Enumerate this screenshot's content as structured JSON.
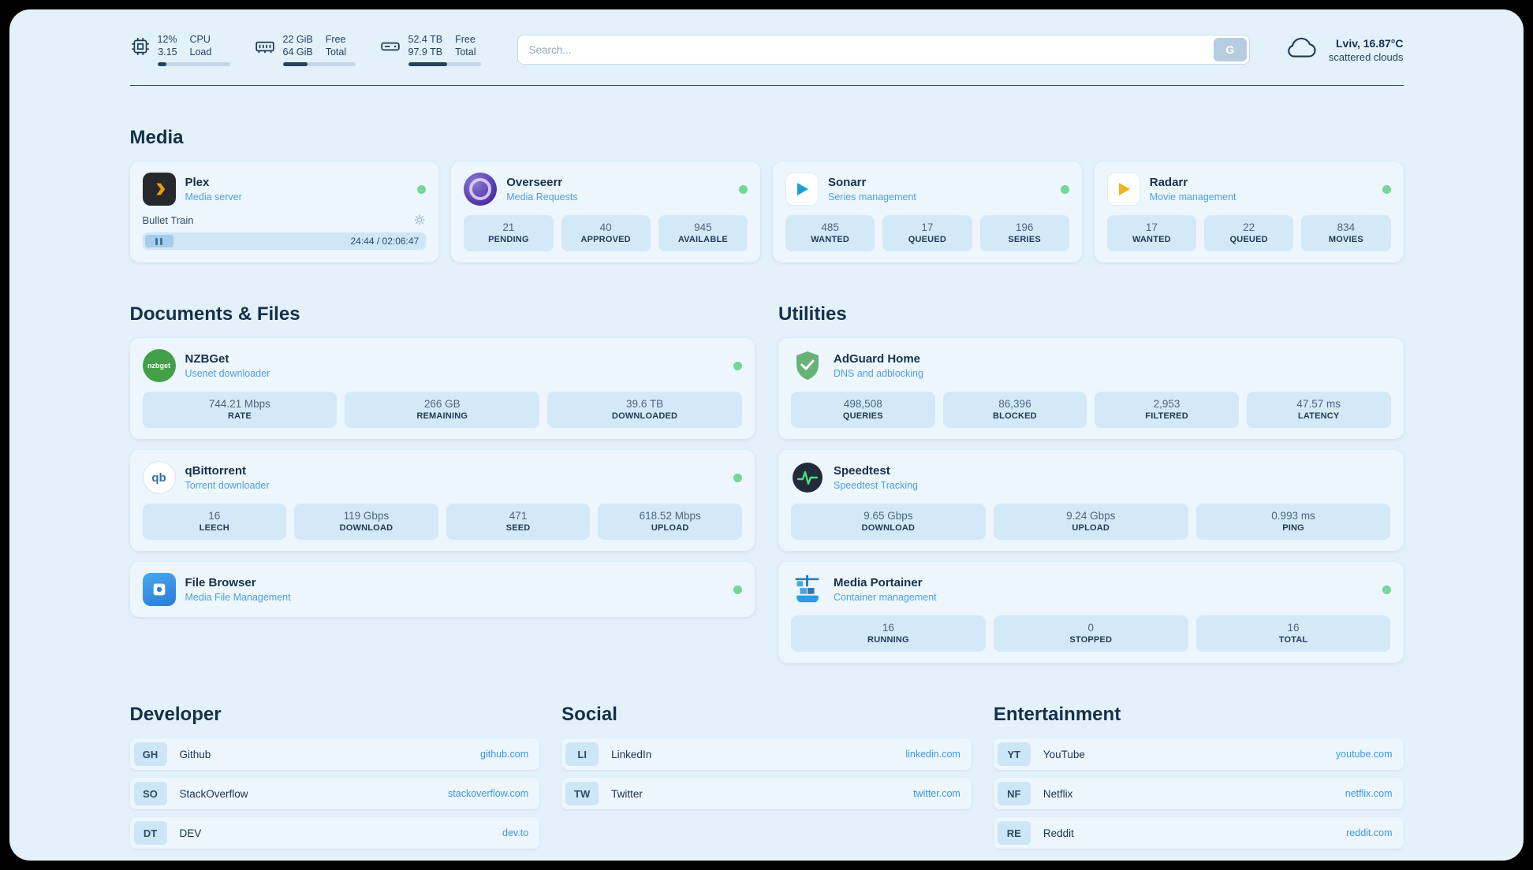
{
  "topbar": {
    "cpu": {
      "value_top": "12%",
      "value_bottom": "3.15",
      "label_top": "CPU",
      "label_bottom": "Load",
      "percent": 12
    },
    "ram": {
      "value_top": "22 GiB",
      "value_bottom": "64 GiB",
      "label_top": "Free",
      "label_bottom": "Total",
      "percent": 34
    },
    "disk": {
      "value_top": "52.4 TB",
      "value_bottom": "97.9 TB",
      "label_top": "Free",
      "label_bottom": "Total",
      "percent": 54
    },
    "search": {
      "placeholder": "Search...",
      "button_label": "G"
    },
    "weather": {
      "location": "Lviv, 16.87°C",
      "condition": "scattered clouds"
    }
  },
  "sections": {
    "media": "Media",
    "documents": "Documents & Files",
    "utilities": "Utilities",
    "developer": "Developer",
    "social": "Social",
    "entertainment": "Entertainment"
  },
  "media": {
    "plex": {
      "name": "Plex",
      "subtitle": "Media server",
      "now_playing": "Bullet Train",
      "time": "24:44 / 02:06:47"
    },
    "overseerr": {
      "name": "Overseerr",
      "subtitle": "Media Requests",
      "stats": [
        {
          "value": "21",
          "label": "PENDING"
        },
        {
          "value": "40",
          "label": "APPROVED"
        },
        {
          "value": "945",
          "label": "AVAILABLE"
        }
      ]
    },
    "sonarr": {
      "name": "Sonarr",
      "subtitle": "Series management",
      "stats": [
        {
          "value": "485",
          "label": "WANTED"
        },
        {
          "value": "17",
          "label": "QUEUED"
        },
        {
          "value": "196",
          "label": "SERIES"
        }
      ]
    },
    "radarr": {
      "name": "Radarr",
      "subtitle": "Movie management",
      "stats": [
        {
          "value": "17",
          "label": "WANTED"
        },
        {
          "value": "22",
          "label": "QUEUED"
        },
        {
          "value": "834",
          "label": "MOVIES"
        }
      ]
    }
  },
  "documents": {
    "nzbget": {
      "name": "NZBGet",
      "subtitle": "Usenet downloader",
      "icon_text": "nzbget",
      "stats": [
        {
          "value": "744.21 Mbps",
          "label": "RATE"
        },
        {
          "value": "266 GB",
          "label": "REMAINING"
        },
        {
          "value": "39.6 TB",
          "label": "DOWNLOADED"
        }
      ]
    },
    "qbittorrent": {
      "name": "qBittorrent",
      "subtitle": "Torrent downloader",
      "icon_text": "qb",
      "stats": [
        {
          "value": "16",
          "label": "LEECH"
        },
        {
          "value": "119 Gbps",
          "label": "DOWNLOAD"
        },
        {
          "value": "471",
          "label": "SEED"
        },
        {
          "value": "618.52 Mbps",
          "label": "UPLOAD"
        }
      ]
    },
    "filebrowser": {
      "name": "File Browser",
      "subtitle": "Media File Management"
    }
  },
  "utilities": {
    "adguard": {
      "name": "AdGuard Home",
      "subtitle": "DNS and adblocking",
      "stats": [
        {
          "value": "498,508",
          "label": "QUERIES"
        },
        {
          "value": "86,396",
          "label": "BLOCKED"
        },
        {
          "value": "2,953",
          "label": "FILTERED"
        },
        {
          "value": "47.57 ms",
          "label": "LATENCY"
        }
      ]
    },
    "speedtest": {
      "name": "Speedtest",
      "subtitle": "Speedtest Tracking",
      "stats": [
        {
          "value": "9.65 Gbps",
          "label": "DOWNLOAD"
        },
        {
          "value": "9.24 Gbps",
          "label": "UPLOAD"
        },
        {
          "value": "0.993 ms",
          "label": "PING"
        }
      ]
    },
    "portainer": {
      "name": "Media Portainer",
      "subtitle": "Container management",
      "stats": [
        {
          "value": "16",
          "label": "RUNNING"
        },
        {
          "value": "0",
          "label": "STOPPED"
        },
        {
          "value": "16",
          "label": "TOTAL"
        }
      ]
    }
  },
  "bookmarks": {
    "developer": [
      {
        "abbr": "GH",
        "name": "Github",
        "url": "github.com"
      },
      {
        "abbr": "SO",
        "name": "StackOverflow",
        "url": "stackoverflow.com"
      },
      {
        "abbr": "DT",
        "name": "DEV",
        "url": "dev.to"
      }
    ],
    "social": [
      {
        "abbr": "LI",
        "name": "LinkedIn",
        "url": "linkedin.com"
      },
      {
        "abbr": "TW",
        "name": "Twitter",
        "url": "twitter.com"
      }
    ],
    "entertainment": [
      {
        "abbr": "YT",
        "name": "YouTube",
        "url": "youtube.com"
      },
      {
        "abbr": "NF",
        "name": "Netflix",
        "url": "netflix.com"
      },
      {
        "abbr": "RE",
        "name": "Reddit",
        "url": "reddit.com"
      }
    ]
  },
  "colors": {
    "accent_blue": "#4f9edb",
    "status_green": "#74d69a",
    "heading": "#14304a"
  }
}
